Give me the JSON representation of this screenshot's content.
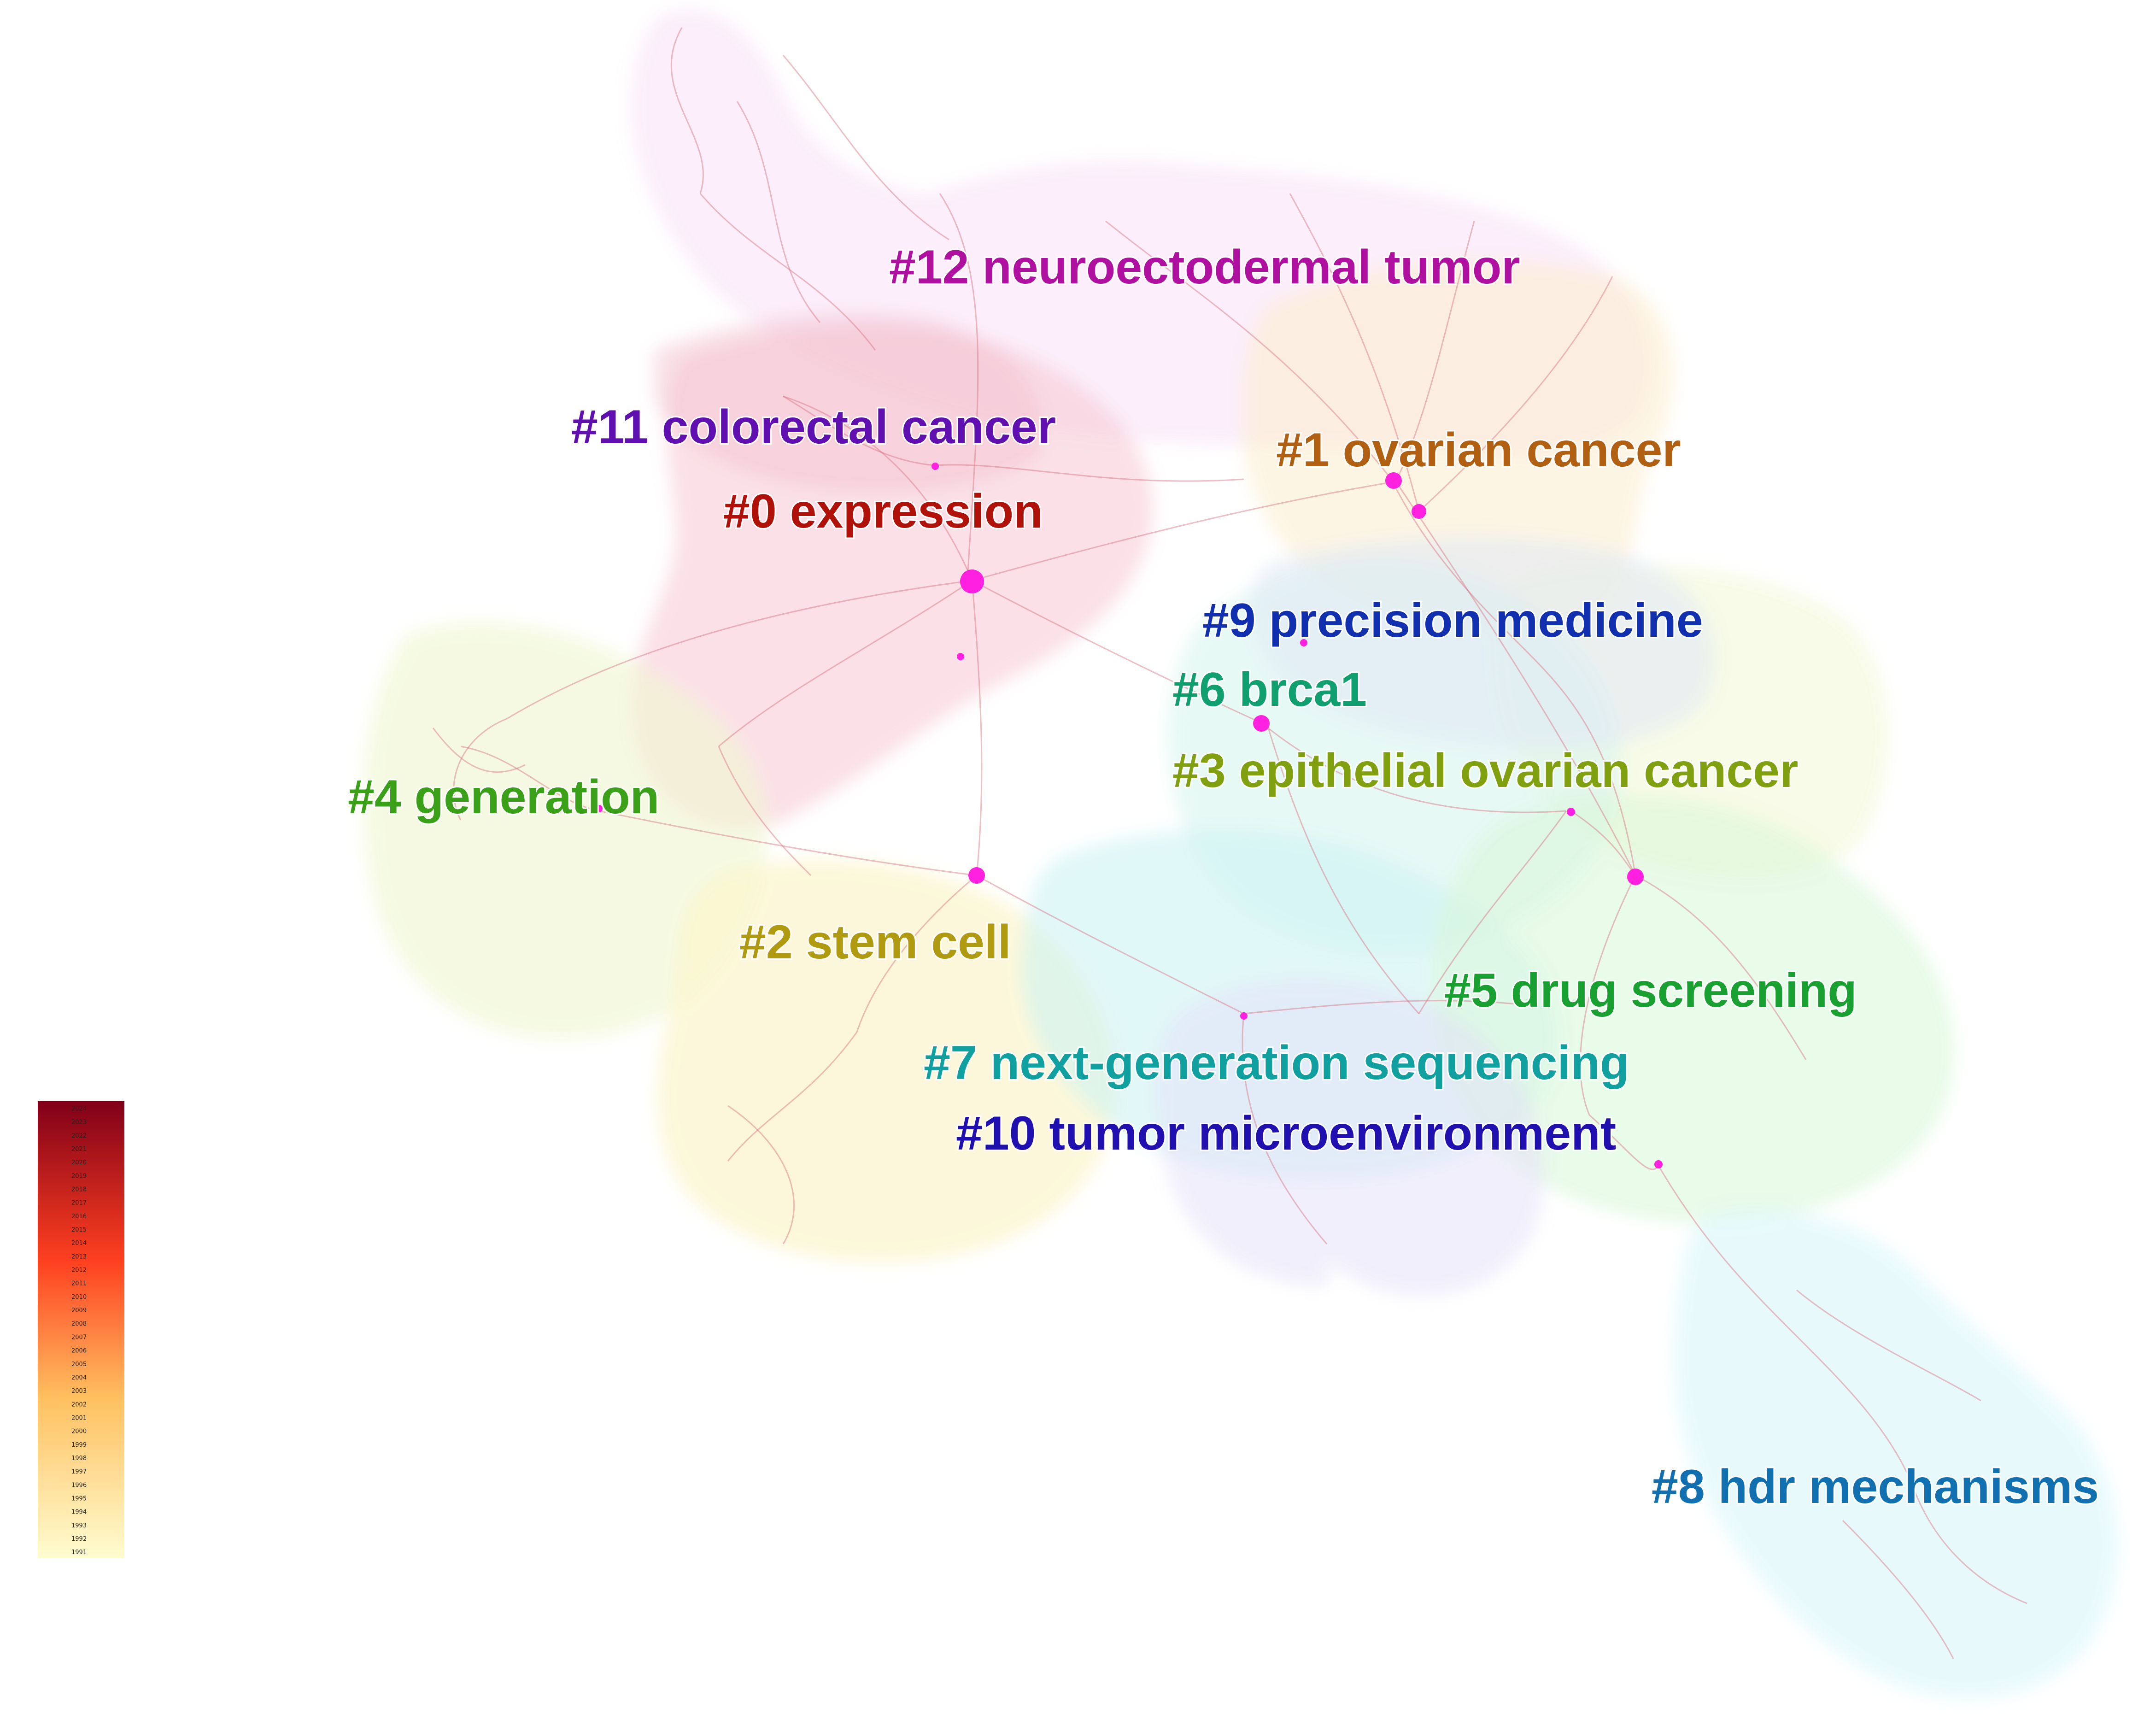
{
  "clusters": [
    {
      "id": "c0",
      "label": "#0 expression",
      "color": "#b0120a"
    },
    {
      "id": "c1",
      "label": "#1 ovarian cancer",
      "color": "#b06010"
    },
    {
      "id": "c2",
      "label": "#2 stem cell",
      "color": "#b09a10"
    },
    {
      "id": "c3",
      "label": "#3 epithelial ovarian cancer",
      "color": "#80a010"
    },
    {
      "id": "c4",
      "label": "#4 generation",
      "color": "#3aa018"
    },
    {
      "id": "c5",
      "label": "#5 drug screening",
      "color": "#18a030"
    },
    {
      "id": "c6",
      "label": "#6 brca1",
      "color": "#10a070"
    },
    {
      "id": "c7",
      "label": "#7 next-generation sequencing",
      "color": "#10a0a0"
    },
    {
      "id": "c8",
      "label": "#8 hdr mechanisms",
      "color": "#1070b0"
    },
    {
      "id": "c9",
      "label": "#9 precision medicine",
      "color": "#1030b0"
    },
    {
      "id": "c10",
      "label": "#10 tumor microenvironment",
      "color": "#2010b0"
    },
    {
      "id": "c11",
      "label": "#11 colorectal cancer",
      "color": "#6010b0"
    },
    {
      "id": "c12",
      "label": "#12 neuroectodermal tumor",
      "color": "#b010a0"
    }
  ],
  "legend": {
    "years": [
      "2024",
      "2023",
      "2022",
      "2021",
      "2020",
      "2019",
      "2018",
      "2017",
      "2016",
      "2015",
      "2014",
      "2013",
      "2012",
      "2011",
      "2010",
      "2009",
      "2008",
      "2007",
      "2006",
      "2005",
      "2004",
      "2003",
      "2002",
      "2001",
      "2000",
      "1999",
      "1998",
      "1997",
      "1996",
      "1995",
      "1994",
      "1993",
      "1992",
      "1991"
    ],
    "color_top": "#800018",
    "color_mid": "#ff4020",
    "color_low": "#ffc060",
    "color_bottom": "#fffcd0"
  },
  "colors": {
    "edge": "#d87080",
    "node": "#ff20e0"
  }
}
